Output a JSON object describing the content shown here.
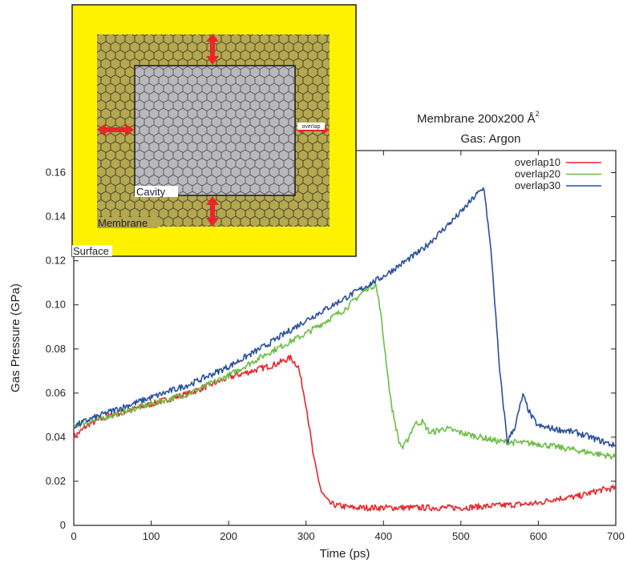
{
  "chart_data": {
    "type": "line",
    "title": "Membrane 200x200 Å",
    "title_superscript": "2",
    "subtitle": "Gas: Argon",
    "xlabel": "Time (ps)",
    "ylabel": "Gas Pressure (GPa)",
    "xlim": [
      0,
      700
    ],
    "ylim": [
      0,
      0.17
    ],
    "xticks": [
      0,
      100,
      200,
      300,
      400,
      500,
      600,
      700
    ],
    "yticks": [
      0,
      0.02,
      0.04,
      0.06,
      0.08,
      0.1,
      0.12,
      0.14,
      0.16
    ],
    "ytick_labels": [
      "0",
      "0.02",
      "0.04",
      "0.06",
      "0.08",
      "0.10",
      "0.12",
      "0.14",
      "0.16"
    ],
    "grid": false,
    "legend_position": "top-right",
    "series": [
      {
        "name": "overlap10",
        "color": "#e8262b",
        "x": [
          0,
          20,
          50,
          100,
          150,
          200,
          230,
          260,
          280,
          290,
          300,
          310,
          320,
          330,
          340,
          360,
          400,
          450,
          500,
          550,
          600,
          620,
          650,
          680,
          700
        ],
        "y": [
          0.04,
          0.046,
          0.05,
          0.055,
          0.06,
          0.067,
          0.07,
          0.073,
          0.076,
          0.072,
          0.055,
          0.03,
          0.015,
          0.01,
          0.009,
          0.008,
          0.008,
          0.008,
          0.008,
          0.009,
          0.01,
          0.012,
          0.013,
          0.016,
          0.017
        ]
      },
      {
        "name": "overlap20",
        "color": "#6cbe45",
        "x": [
          0,
          20,
          50,
          100,
          150,
          200,
          250,
          300,
          350,
          380,
          390,
          395,
          400,
          410,
          420,
          425,
          430,
          440,
          450,
          460,
          480,
          500,
          550,
          600,
          650,
          700
        ],
        "y": [
          0.045,
          0.047,
          0.05,
          0.055,
          0.06,
          0.068,
          0.078,
          0.087,
          0.098,
          0.108,
          0.109,
          0.1,
          0.085,
          0.055,
          0.038,
          0.035,
          0.038,
          0.046,
          0.047,
          0.042,
          0.044,
          0.042,
          0.038,
          0.037,
          0.034,
          0.031
        ]
      },
      {
        "name": "overlap30",
        "color": "#2a4f9e",
        "x": [
          0,
          20,
          50,
          100,
          150,
          200,
          250,
          300,
          350,
          400,
          450,
          500,
          520,
          530,
          540,
          550,
          560,
          570,
          580,
          590,
          600,
          650,
          700
        ],
        "y": [
          0.045,
          0.048,
          0.052,
          0.058,
          0.064,
          0.072,
          0.082,
          0.093,
          0.103,
          0.113,
          0.125,
          0.142,
          0.15,
          0.153,
          0.12,
          0.07,
          0.038,
          0.045,
          0.059,
          0.05,
          0.045,
          0.042,
          0.036
        ]
      }
    ]
  },
  "inset": {
    "labels": {
      "cavity": "Cavity",
      "membrane": "Membrane",
      "surface": "Surface",
      "overlap": "overlap"
    },
    "colors": {
      "surface": "#fff200",
      "membrane": "#b5a84f",
      "cavity": "#b9b9bd",
      "arrow": "#e8262b"
    }
  }
}
